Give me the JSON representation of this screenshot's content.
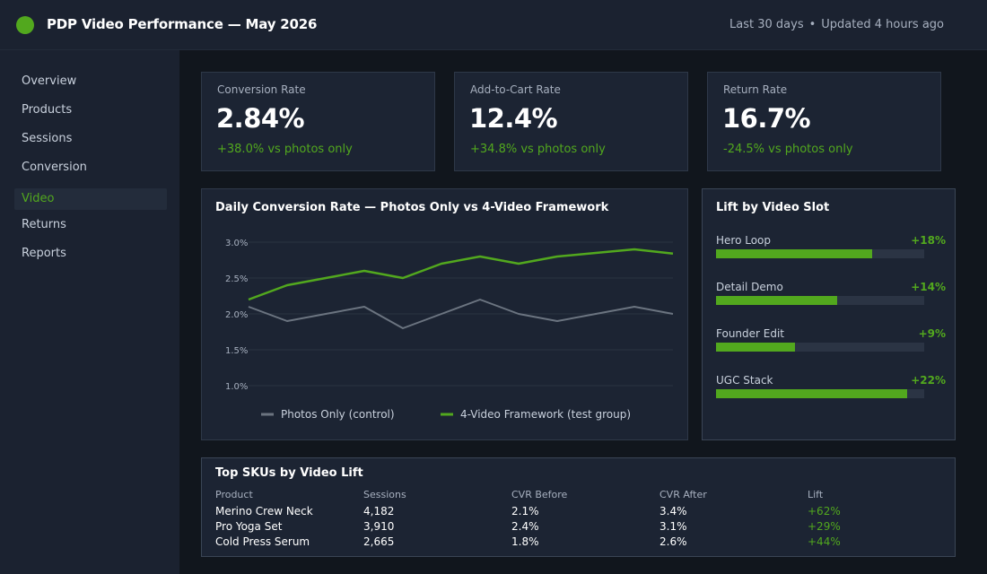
{
  "header": {
    "title": "PDP Video Performance — May 2026",
    "range": "Last 30 days",
    "separator": "•",
    "updated": "Updated 4 hours ago",
    "brand_color": "#52a81e"
  },
  "sidebar": {
    "items": [
      {
        "label": "Overview",
        "active": false
      },
      {
        "label": "Products",
        "active": false
      },
      {
        "label": "Sessions",
        "active": false
      },
      {
        "label": "Conversion",
        "active": false
      },
      {
        "label": "Video",
        "active": true
      },
      {
        "label": "Returns",
        "active": false
      },
      {
        "label": "Reports",
        "active": false
      }
    ]
  },
  "kpis": [
    {
      "label": "Conversion Rate",
      "value": "2.84%",
      "delta": "+38.0% vs photos only"
    },
    {
      "label": "Add-to-Cart Rate",
      "value": "12.4%",
      "delta": "+34.8% vs photos only"
    },
    {
      "label": "Return Rate",
      "value": "16.7%",
      "delta": "-24.5% vs photos only"
    }
  ],
  "line_chart": {
    "title": "Daily Conversion Rate — Photos Only vs 4-Video Framework"
  },
  "slots": {
    "title": "Lift by Video Slot",
    "items": [
      {
        "label": "Hero Loop",
        "value": "+18%",
        "fill_fraction": 0.75
      },
      {
        "label": "Detail Demo",
        "value": "+14%",
        "fill_fraction": 0.58
      },
      {
        "label": "Founder Edit",
        "value": "+9%",
        "fill_fraction": 0.38
      },
      {
        "label": "UGC Stack",
        "value": "+22%",
        "fill_fraction": 0.92
      }
    ]
  },
  "sku_table": {
    "title": "Top SKUs by Video Lift",
    "columns": [
      "Product",
      "Sessions",
      "CVR Before",
      "CVR After",
      "Lift"
    ],
    "rows": [
      [
        "Merino Crew Neck",
        "4,182",
        "2.1%",
        "3.4%",
        "+62%"
      ],
      [
        "Pro Yoga Set",
        "3,910",
        "2.4%",
        "3.1%",
        "+29%"
      ],
      [
        "Cold Press Serum",
        "2,665",
        "1.8%",
        "2.6%",
        "+44%"
      ]
    ]
  },
  "chart_data": {
    "type": "line",
    "title": "Daily Conversion Rate — Photos Only vs 4-Video Framework",
    "xlabel": "",
    "ylabel": "",
    "x": [
      1,
      2,
      3,
      4,
      5,
      6,
      7,
      8,
      9,
      10,
      11,
      12
    ],
    "ylim": [
      1.0,
      3.0
    ],
    "yticks": [
      "1.0%",
      "1.5%",
      "2.0%",
      "2.5%",
      "3.0%"
    ],
    "ytick_values": [
      1.0,
      1.5,
      2.0,
      2.5,
      3.0
    ],
    "grid": true,
    "legend": "bottom",
    "series": [
      {
        "name": "Photos Only (control)",
        "color": "#6b7480",
        "values": [
          2.1,
          1.9,
          2.0,
          2.1,
          1.8,
          2.0,
          2.2,
          2.0,
          1.9,
          2.0,
          2.1,
          2.0
        ]
      },
      {
        "name": "4-Video Framework (test group)",
        "color": "#52a81e",
        "values": [
          2.2,
          2.4,
          2.5,
          2.6,
          2.5,
          2.7,
          2.8,
          2.7,
          2.8,
          2.85,
          2.9,
          2.84
        ]
      }
    ]
  }
}
